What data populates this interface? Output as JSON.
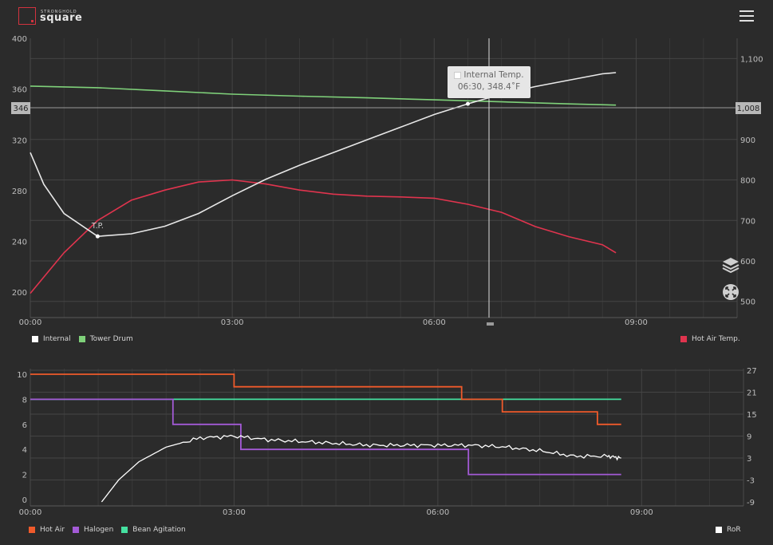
{
  "header": {
    "brand_small": "STRONGHOLD",
    "brand_name": "square"
  },
  "colors": {
    "internal": "#e8e8e8",
    "tower_drum": "#7fd17a",
    "hot_air_temp": "#e0344e",
    "hot_air": "#ef5a2b",
    "halogen": "#a35ad6",
    "bean_agitation": "#45e0a0",
    "ror": "#ffffff"
  },
  "top_chart": {
    "x_ticks": [
      "00:00",
      "03:00",
      "06:00",
      "09:00"
    ],
    "left_ticks": [
      "400",
      "360",
      "320",
      "280",
      "240",
      "200"
    ],
    "right_ticks": [
      "1,100",
      "1,008",
      "900",
      "800",
      "700",
      "600",
      "500"
    ],
    "left_crosshair_label": "346",
    "right_crosshair_label": "1,008",
    "turning_point_label": "T.P.",
    "tooltip": {
      "title": "Internal Temp.",
      "value": "06:30, 348.4˚F"
    }
  },
  "top_legend": {
    "internal": "Internal",
    "tower_drum": "Tower Drum",
    "hot_air_temp": "Hot Air Temp."
  },
  "bottom_chart": {
    "x_ticks": [
      "00:00",
      "03:00",
      "06:00",
      "09:00"
    ],
    "left_ticks": [
      "10",
      "8",
      "6",
      "4",
      "2",
      "0"
    ],
    "right_ticks": [
      "27",
      "21",
      "15",
      "9",
      "3",
      "-3",
      "-9"
    ]
  },
  "bottom_legend": {
    "hot_air": "Hot Air",
    "halogen": "Halogen",
    "bean_agitation": "Bean Agitation",
    "ror": "RoR"
  },
  "chart_data": [
    {
      "type": "line",
      "x_unit": "minutes",
      "xlim": [
        0,
        10.5
      ],
      "ylim_left": [
        180,
        400
      ],
      "ylim_right": [
        460,
        1150
      ],
      "series": [
        {
          "name": "Internal",
          "axis": "left",
          "x": [
            0,
            0.2,
            0.5,
            1.0,
            1.5,
            2.0,
            2.5,
            3.0,
            3.5,
            4.0,
            4.5,
            5.0,
            5.5,
            6.0,
            6.5,
            7.0,
            7.5,
            8.0,
            8.5,
            8.7
          ],
          "y": [
            310,
            285,
            262,
            244,
            246,
            252,
            262,
            276,
            289,
            300,
            310,
            320,
            330,
            340,
            348.4,
            356,
            362,
            367,
            372,
            373
          ]
        },
        {
          "name": "Tower Drum",
          "axis": "right",
          "x": [
            0,
            1,
            2,
            3,
            4,
            5,
            6,
            7,
            8,
            8.7
          ],
          "y": [
            1032,
            1028,
            1020,
            1012,
            1007,
            1003,
            998,
            993,
            988,
            985
          ]
        },
        {
          "name": "Hot Air Temp.",
          "axis": "right",
          "x": [
            0,
            0.5,
            1.0,
            1.5,
            2.0,
            2.5,
            3.0,
            3.5,
            4.0,
            4.5,
            5.0,
            5.5,
            6.0,
            6.5,
            7.0,
            7.5,
            8.0,
            8.5,
            8.7
          ],
          "y": [
            520,
            620,
            700,
            750,
            775,
            795,
            800,
            790,
            775,
            765,
            760,
            758,
            755,
            740,
            720,
            685,
            660,
            640,
            620
          ]
        }
      ],
      "annotations": [
        {
          "label": "T.P.",
          "x": 1.0,
          "y": 244
        }
      ],
      "crosshair": {
        "x": 6.5,
        "left_value": 346,
        "right_value": 1008
      }
    },
    {
      "type": "line",
      "x_unit": "minutes",
      "xlim": [
        0,
        10.5
      ],
      "ylim_left": [
        0,
        10.5
      ],
      "ylim_right": [
        -9,
        27
      ],
      "series": [
        {
          "name": "Hot Air",
          "axis": "left",
          "step": true,
          "x": [
            0,
            3.0,
            6.35,
            6.95,
            8.35,
            8.7
          ],
          "y": [
            10,
            9,
            8,
            7,
            6,
            6
          ]
        },
        {
          "name": "Halogen",
          "axis": "left",
          "step": true,
          "x": [
            0,
            2.1,
            3.1,
            6.45,
            8.7
          ],
          "y": [
            8,
            6,
            4,
            2,
            2
          ]
        },
        {
          "name": "Bean Agitation",
          "axis": "left",
          "step": true,
          "x": [
            0,
            8.7
          ],
          "y": [
            8,
            8
          ]
        },
        {
          "name": "RoR",
          "axis": "right",
          "x": [
            1.05,
            1.3,
            1.6,
            2.0,
            2.5,
            3.0,
            3.5,
            4.0,
            4.5,
            5.0,
            5.5,
            6.0,
            6.5,
            7.0,
            7.5,
            8.0,
            8.5,
            8.7
          ],
          "y": [
            -9,
            -3,
            2,
            6,
            8.5,
            9,
            8,
            7.5,
            7,
            6.5,
            6.5,
            6.5,
            6.5,
            6,
            5,
            3.5,
            3.5,
            3
          ]
        }
      ]
    }
  ]
}
